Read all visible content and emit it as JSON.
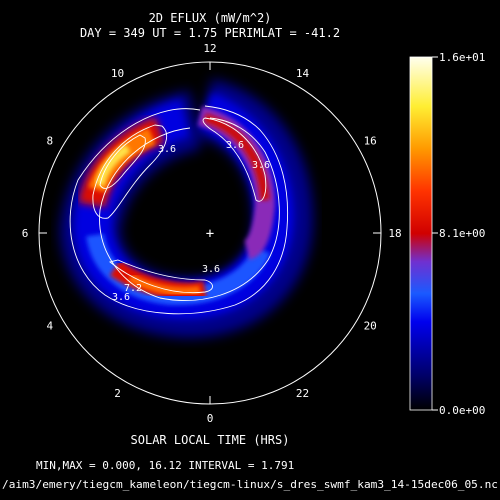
{
  "title_line1": "2D EFLUX (mW/m^2)",
  "title_line2": "DAY = 349  UT =  1.75  PERIMLAT = -41.2",
  "xlabel": "SOLAR LOCAL TIME (HRS)",
  "footer_line1": "MIN,MAX =      0.000,      16.12 INTERVAL =      1.791",
  "footer_line2": "/aim3/emery/tiegcm_kameleon/tiegcm-linux/s_dres_swmf_kam3_14-15dec06_05.nc",
  "colorbar": {
    "max_label": "1.6e+01",
    "mid_label": "8.1e+00",
    "min_label": "0.0e+00"
  },
  "center_symbol": "+",
  "chart_data": {
    "type": "heatmap",
    "projection": "polar (magnetic local time)",
    "min": 0.0,
    "max": 16.12,
    "interval": 1.791,
    "perimeter_lat": -41.2,
    "local_time_ticks": [
      "0",
      "2",
      "4",
      "6",
      "8",
      "10",
      "12",
      "14",
      "16",
      "18",
      "20",
      "22"
    ],
    "contour_labels": [
      "3.6",
      "3.6",
      "3.6",
      "3.6",
      "3.6",
      "7.2"
    ],
    "colormap": [
      "#000000",
      "#00004a",
      "#0000c8",
      "#0066ff",
      "#aa22cc",
      "#dd0000",
      "#ff5500",
      "#ff9900",
      "#ffdd33",
      "#ffffee"
    ]
  }
}
